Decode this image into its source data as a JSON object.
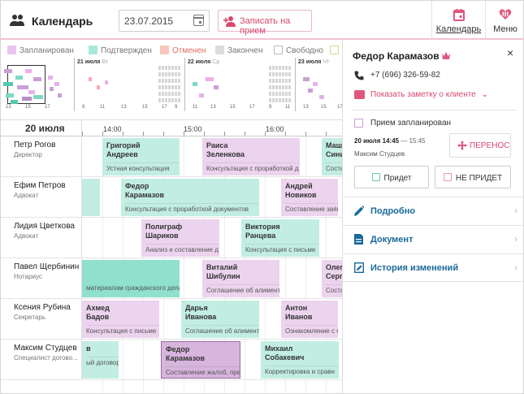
{
  "header": {
    "app_title": "Календарь",
    "app_icon": "people-icon",
    "date_value": "23.07.2015",
    "register_label": "Записать на прием",
    "tab_calendar": "Календарь",
    "tab_menu": "Меню"
  },
  "legend": [
    {
      "label": "Запланирован",
      "color": "#e8c6ee"
    },
    {
      "label": "Подтвержден",
      "color": "#a8e8d8"
    },
    {
      "label": "Отменен",
      "color": "#f8c6bc"
    },
    {
      "label": "Закончен",
      "color": "#dcdcdc"
    },
    {
      "label": "Свободно",
      "color": "#ffffff"
    }
  ],
  "overview": {
    "days": [
      {
        "label": "21 июля",
        "weekday": "Вт"
      },
      {
        "label": "22 июля",
        "weekday": "Ср"
      },
      {
        "label": "23 июля",
        "weekday": "Чт"
      }
    ],
    "ticks": [
      "13",
      "15",
      "17",
      "9",
      "11",
      "13",
      "15",
      "17",
      "9",
      "11",
      "13",
      "15",
      "17",
      "9",
      "11",
      "13",
      "15",
      "17"
    ]
  },
  "schedule": {
    "day_header": "20 июля",
    "times": [
      "14:00",
      "15:00",
      "16:00"
    ],
    "people": [
      {
        "name": "Петр Рогов",
        "role": "Директор"
      },
      {
        "name": "Ефим Петров",
        "role": "Адвокат"
      },
      {
        "name": "Лидия Цветкова",
        "role": "Адвокат"
      },
      {
        "name": "Павел Щербинин",
        "role": "Нотариус"
      },
      {
        "name": "Ксения Рубина",
        "role": "Секретарь"
      },
      {
        "name": "Максим Студцев",
        "role": "Специалист догово..."
      }
    ],
    "events": [
      {
        "row": 0,
        "n1": "Григорий",
        "n2": "Андреев",
        "desc": "Устная консультация",
        "kind": "c"
      },
      {
        "row": 0,
        "n1": "Раиса",
        "n2": "Зеленкова",
        "desc": "Консультация с проработкой д",
        "kind": "s"
      },
      {
        "row": 0,
        "n1": "Маш",
        "n2": "Сини",
        "desc": "Соста",
        "kind": "c"
      },
      {
        "row": 1,
        "n1": "",
        "n2": "",
        "desc": "",
        "kind": "c"
      },
      {
        "row": 1,
        "n1": "Федор",
        "n2": "Карамазов",
        "desc": "Консультация с проработкой документов",
        "kind": "c"
      },
      {
        "row": 1,
        "n1": "Андрей",
        "n2": "Новиков",
        "desc": "Составление заяв",
        "kind": "s"
      },
      {
        "row": 2,
        "n1": "Полиграф",
        "n2": "Шариков",
        "desc": "Анализ и составление д",
        "kind": "s"
      },
      {
        "row": 2,
        "n1": "Виктория",
        "n2": "Ранцева",
        "desc": "Консультация с письме",
        "kind": "c"
      },
      {
        "row": 3,
        "n1": "",
        "n2": "",
        "desc": "материалам гражданского дела",
        "kind": "cd"
      },
      {
        "row": 3,
        "n1": "Виталий",
        "n2": "Шибулин",
        "desc": "Соглашение об алимент",
        "kind": "s"
      },
      {
        "row": 3,
        "n1": "Олег",
        "n2": "Серг",
        "desc": "Соста",
        "kind": "s"
      },
      {
        "row": 4,
        "n1": "Ахмед",
        "n2": "Бадов",
        "desc": "Консультация с письме",
        "kind": "s"
      },
      {
        "row": 4,
        "n1": "Дарья",
        "n2": "Иванова",
        "desc": "Соглашение об алимент",
        "kind": "c"
      },
      {
        "row": 4,
        "n1": "Антон",
        "n2": "Иванов",
        "desc": "Ознакомление с мате",
        "kind": "s"
      },
      {
        "row": 5,
        "n1": "в",
        "n2": "",
        "desc": "ый договор",
        "kind": "c"
      },
      {
        "row": 5,
        "n1": "Федор",
        "n2": "Карамазов",
        "desc": "Составление жалоб, пре",
        "kind": "sel"
      },
      {
        "row": 5,
        "n1": "Михаил",
        "n2": "Собакевич",
        "desc": "Корректировка и сравн",
        "kind": "c"
      }
    ]
  },
  "panel": {
    "client_name": "Федор Карамазов",
    "phone": "+7 (696) 326-59-82",
    "note_link": "Показать заметку о клиенте",
    "status": "Прием запланирован",
    "time_bold": "20 июля 14:45",
    "time_rest": "— 15:45",
    "specialist": "Максим Студцев",
    "move_label": "ПЕРЕНОС",
    "will_come": "Придет",
    "wont_come": "НЕ ПРИДЕТ",
    "sections": [
      "Подробно",
      "Документ",
      "История изменений"
    ]
  }
}
